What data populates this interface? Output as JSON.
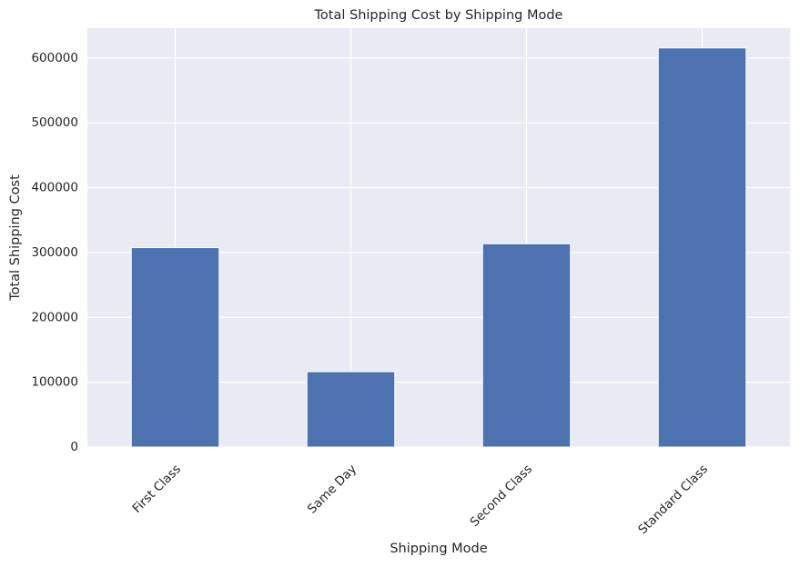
{
  "chart_data": {
    "type": "bar",
    "title": "Total Shipping Cost by Shipping Mode",
    "xlabel": "Shipping Mode",
    "ylabel": "Total Shipping Cost",
    "categories": [
      "First Class",
      "Same Day",
      "Second Class",
      "Standard Class"
    ],
    "values": [
      307500,
      116200,
      313500,
      615500
    ],
    "ylim": [
      0,
      646000
    ],
    "yticks": [
      0,
      100000,
      200000,
      300000,
      400000,
      500000,
      600000
    ],
    "ytick_labels": [
      "0",
      "100000",
      "200000",
      "300000",
      "400000",
      "500000",
      "600000"
    ],
    "grid": true,
    "legend": false,
    "colors": {
      "bar": "#4c72b0",
      "plot_background": "#eaeaf2",
      "grid": "#ffffff",
      "text": "#262626"
    }
  }
}
